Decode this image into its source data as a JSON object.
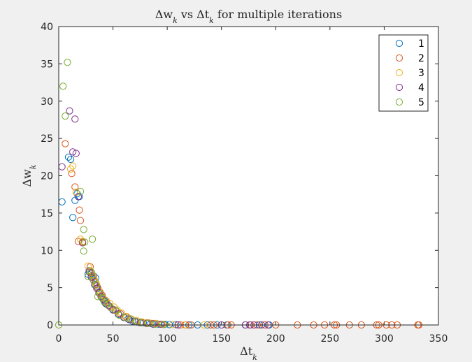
{
  "chart_data": {
    "type": "scatter",
    "title": "Δw_k vs Δt_k for multiple iterations",
    "xlabel": "Δt_k",
    "ylabel": "Δw_k",
    "xlim": [
      0,
      350
    ],
    "ylim": [
      0,
      40
    ],
    "xticks": [
      0,
      50,
      100,
      150,
      200,
      250,
      300,
      350
    ],
    "yticks": [
      0,
      5,
      10,
      15,
      20,
      25,
      30,
      35,
      40
    ],
    "legend_position": "top-right",
    "marker": "open-circle",
    "series": [
      {
        "name": "1",
        "color": "#0072BD",
        "points": [
          [
            3,
            16.5
          ],
          [
            9,
            22.5
          ],
          [
            11,
            22.2
          ],
          [
            13,
            14.4
          ],
          [
            15,
            16.7
          ],
          [
            17,
            17.6
          ],
          [
            19,
            17.2
          ],
          [
            27,
            6.8
          ],
          [
            28,
            7.3
          ],
          [
            30,
            6.9
          ],
          [
            31,
            6.4
          ],
          [
            32,
            6.6
          ],
          [
            34,
            6.3
          ],
          [
            35,
            5.2
          ],
          [
            36,
            4.9
          ],
          [
            38,
            4.2
          ],
          [
            40,
            3.8
          ],
          [
            42,
            3.3
          ],
          [
            44,
            2.8
          ],
          [
            46,
            2.6
          ],
          [
            50,
            2.1
          ],
          [
            55,
            1.4
          ],
          [
            60,
            1.0
          ],
          [
            64,
            0.8
          ],
          [
            68,
            0.5
          ],
          [
            72,
            0.4
          ],
          [
            78,
            0.3
          ],
          [
            85,
            0.2
          ],
          [
            92,
            0.1
          ],
          [
            98,
            0.1
          ],
          [
            102,
            0.05
          ],
          [
            108,
            0.05
          ],
          [
            120,
            0.0
          ],
          [
            128,
            0.0
          ],
          [
            137,
            0.0
          ],
          [
            146,
            0.0
          ],
          [
            155,
            0.0
          ],
          [
            172,
            0.0
          ],
          [
            185,
            0.0
          ],
          [
            194,
            0.0
          ]
        ]
      },
      {
        "name": "2",
        "color": "#D95319",
        "points": [
          [
            6,
            24.3
          ],
          [
            12,
            20.3
          ],
          [
            15,
            18.5
          ],
          [
            18,
            11.2
          ],
          [
            19,
            15.4
          ],
          [
            20,
            14.0
          ],
          [
            22,
            11.1
          ],
          [
            29,
            7.8
          ],
          [
            30,
            7.0
          ],
          [
            32,
            6.5
          ],
          [
            34,
            5.7
          ],
          [
            36,
            5.0
          ],
          [
            38,
            4.4
          ],
          [
            40,
            4.0
          ],
          [
            43,
            3.3
          ],
          [
            45,
            2.8
          ],
          [
            47,
            2.5
          ],
          [
            52,
            2.0
          ],
          [
            57,
            1.5
          ],
          [
            62,
            1.1
          ],
          [
            66,
            0.8
          ],
          [
            70,
            0.5
          ],
          [
            76,
            0.4
          ],
          [
            82,
            0.3
          ],
          [
            88,
            0.2
          ],
          [
            95,
            0.1
          ],
          [
            112,
            0.0
          ],
          [
            117,
            0.0
          ],
          [
            122,
            0.0
          ],
          [
            140,
            0.0
          ],
          [
            143,
            0.0
          ],
          [
            156,
            0.0
          ],
          [
            159,
            0.0
          ],
          [
            177,
            0.0
          ],
          [
            183,
            0.0
          ],
          [
            190,
            0.0
          ],
          [
            200,
            0.0
          ],
          [
            220,
            0.0
          ],
          [
            235,
            0.0
          ],
          [
            245,
            0.0
          ],
          [
            254,
            0.0
          ],
          [
            256,
            0.0
          ],
          [
            268,
            0.0
          ],
          [
            279,
            0.0
          ],
          [
            293,
            0.0
          ],
          [
            295,
            0.0
          ],
          [
            302,
            0.0
          ],
          [
            307,
            0.0
          ],
          [
            312,
            0.0
          ],
          [
            331,
            0.0
          ],
          [
            332,
            0.0
          ]
        ]
      },
      {
        "name": "3",
        "color": "#EDB120",
        "points": [
          [
            11,
            20.9
          ],
          [
            13,
            21.3
          ],
          [
            16,
            17.8
          ],
          [
            20,
            11.5
          ],
          [
            22,
            11.2
          ],
          [
            27,
            7.9
          ],
          [
            29,
            7.3
          ],
          [
            31,
            6.7
          ],
          [
            33,
            6.0
          ],
          [
            35,
            5.4
          ],
          [
            37,
            4.6
          ],
          [
            39,
            4.0
          ],
          [
            41,
            3.6
          ],
          [
            44,
            3.2
          ],
          [
            47,
            2.9
          ],
          [
            51,
            2.4
          ],
          [
            54,
            2.0
          ],
          [
            58,
            1.6
          ],
          [
            63,
            1.1
          ],
          [
            67,
            0.8
          ],
          [
            72,
            0.6
          ],
          [
            77,
            0.4
          ],
          [
            83,
            0.3
          ],
          [
            90,
            0.2
          ],
          [
            96,
            0.1
          ],
          [
            105,
            0.05
          ],
          [
            116,
            0.0
          ],
          [
            134,
            0.0
          ],
          [
            150,
            0.0
          ]
        ]
      },
      {
        "name": "4",
        "color": "#7E2F8E",
        "points": [
          [
            3,
            21.2
          ],
          [
            10,
            28.7
          ],
          [
            13,
            23.2
          ],
          [
            15,
            27.6
          ],
          [
            16,
            23.0
          ],
          [
            18,
            17.2
          ],
          [
            22,
            11.0
          ],
          [
            28,
            7.1
          ],
          [
            30,
            6.4
          ],
          [
            32,
            6.0
          ],
          [
            33,
            5.4
          ],
          [
            35,
            4.9
          ],
          [
            37,
            4.3
          ],
          [
            39,
            3.8
          ],
          [
            41,
            3.4
          ],
          [
            43,
            2.9
          ],
          [
            46,
            2.6
          ],
          [
            50,
            2.0
          ],
          [
            55,
            1.5
          ],
          [
            60,
            1.0
          ],
          [
            65,
            0.7
          ],
          [
            70,
            0.5
          ],
          [
            75,
            0.3
          ],
          [
            81,
            0.2
          ],
          [
            87,
            0.1
          ],
          [
            94,
            0.1
          ],
          [
            110,
            0.0
          ],
          [
            150,
            0.0
          ],
          [
            172,
            0.0
          ],
          [
            176,
            0.0
          ],
          [
            180,
            0.0
          ],
          [
            187,
            0.0
          ],
          [
            193,
            0.0
          ]
        ]
      },
      {
        "name": "5",
        "color": "#77AC30",
        "points": [
          [
            0,
            0.0
          ],
          [
            4,
            32.0
          ],
          [
            6,
            28.0
          ],
          [
            8,
            35.2
          ],
          [
            20,
            17.9
          ],
          [
            23,
            12.8
          ],
          [
            23,
            9.9
          ],
          [
            24,
            11.1
          ],
          [
            27,
            6.5
          ],
          [
            30,
            7.1
          ],
          [
            31,
            11.5
          ],
          [
            32,
            6.0
          ],
          [
            34,
            5.4
          ],
          [
            36,
            3.8
          ],
          [
            38,
            4.2
          ],
          [
            40,
            3.6
          ],
          [
            42,
            3.1
          ],
          [
            45,
            2.8
          ],
          [
            48,
            2.3
          ],
          [
            53,
            1.9
          ],
          [
            56,
            1.3
          ],
          [
            61,
            1.0
          ],
          [
            66,
            0.8
          ],
          [
            71,
            0.5
          ],
          [
            76,
            0.3
          ],
          [
            82,
            0.2
          ],
          [
            89,
            0.1
          ],
          [
            97,
            0.05
          ]
        ]
      }
    ]
  }
}
